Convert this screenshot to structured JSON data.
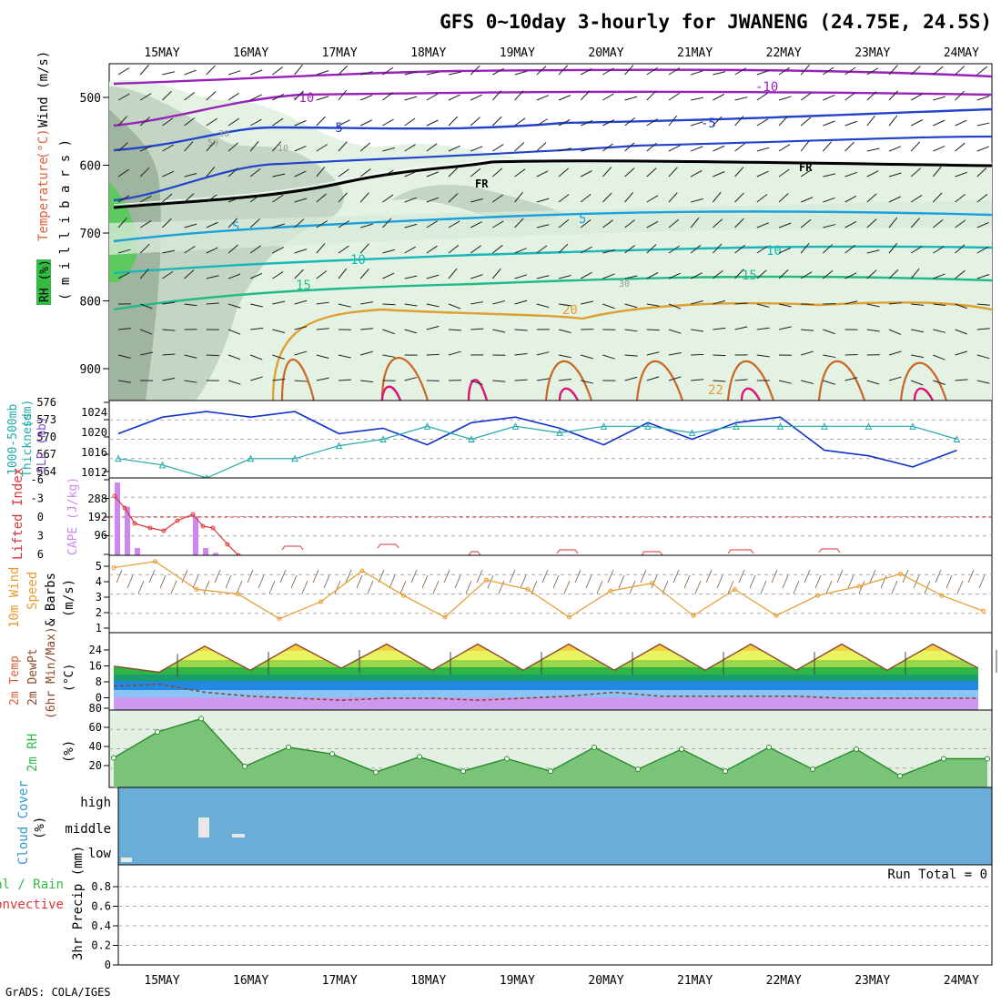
{
  "title": "GFS 0~10day 3-hourly for JWANENG (24.75E, 24.5S)",
  "footer": "GrADS: COLA/IGES",
  "dates": [
    "15MAY",
    "16MAY",
    "17MAY",
    "18MAY",
    "19MAY",
    "20MAY",
    "21MAY",
    "22MAY",
    "23MAY",
    "24MAY"
  ],
  "colors": {
    "temp_label": "#e0603a",
    "wind_label": "#000000",
    "rh_green": "#33bb44",
    "slp_blue": "#1133cc",
    "thickness_cyan": "#22aaaa",
    "lifted_red": "#dd3333",
    "cape_purple": "#cc88ee",
    "wind_orange": "#e89a30",
    "cloud_blue": "#6aaed8",
    "precip_green": "#33bb44",
    "precip_red": "#dd3333"
  },
  "panels": {
    "profile": {
      "ylabel_parts": [
        "Temperature",
        " (°C)",
        "Wind (m/s)"
      ],
      "ylabel_unit": "( m i l l i b a r s )",
      "rh_tag": "RH (%)",
      "pressure_ticks": [
        "500",
        "600",
        "700",
        "800",
        "900"
      ],
      "labels": {
        "m10a": "-10",
        "m10b": "-10",
        "m5a": "-5",
        "m5b": "-5",
        "fr1": "FR",
        "fr2": "FR",
        "p5": "5",
        "p5b": "5",
        "p10a": "10",
        "p10b": "10",
        "p15a": "15",
        "p15b": "15",
        "p20": "20",
        "p22": "22",
        "rh30a": "30",
        "rh30b": "30",
        "rh10": "10",
        "rh50": "50"
      }
    },
    "slp": {
      "ylabel1": "Thickness",
      "ylabel1b": "1000-500mb",
      "ylabel1c": "(dm)",
      "ylabel2": "SLP (mb)",
      "left_ticks": [
        "576",
        "573",
        "570",
        "567",
        "564"
      ],
      "right_ticks": [
        "1024",
        "1020",
        "1016",
        "1012"
      ]
    },
    "cape": {
      "ylabel1": "Lifted Index",
      "ylabel2": "CAPE (J/kg)",
      "left_ticks": [
        "-6",
        "-3",
        "0",
        "3",
        "6"
      ],
      "right_ticks": [
        "288",
        "192",
        "96"
      ]
    },
    "wind10": {
      "ylabel1": "10m Wind",
      "ylabel2": "Speed",
      "ylabel3": "& Barbs",
      "ylabel4": "(m/s)",
      "ticks": [
        "5",
        "4",
        "3",
        "2",
        "1"
      ]
    },
    "temp2m": {
      "ylabel1": "2m Temp",
      "ylabel2": "2m DewPt",
      "ylabel3": "(6hr Min/Max)",
      "ylabel4": "(°C)",
      "ticks": [
        "24",
        "16",
        "8",
        "0"
      ]
    },
    "rh2m": {
      "ylabel1": "2m RH",
      "ylabel2": "(%)",
      "ticks": [
        "80",
        "60",
        "40",
        "20"
      ]
    },
    "cloud": {
      "ylabel1": "Cloud Cover",
      "ylabel2": "(%)",
      "rows": [
        "high",
        "middle",
        "low"
      ]
    },
    "precip": {
      "ylabel1": "Total / Rain",
      "ylabel2": "Convective",
      "ylabel3": "3hr Precip (mm)",
      "ticks": [
        "0.8",
        "0.6",
        "0.4",
        "0.2",
        "0"
      ],
      "run_total": "Run Total = 0"
    }
  },
  "chart_data": [
    {
      "type": "line",
      "title": "Thickness 1000-500mb (dm) / SLP (mb)",
      "x": [
        "15MAY 00",
        "15MAY 12",
        "16MAY 00",
        "16MAY 12",
        "17MAY 00",
        "17MAY 12",
        "18MAY 00",
        "18MAY 12",
        "19MAY 00",
        "19MAY 12",
        "20MAY 00",
        "20MAY 12",
        "21MAY 00",
        "21MAY 12",
        "22MAY 00",
        "22MAY 12",
        "23MAY 00",
        "23MAY 12",
        "24MAY 00",
        "24MAY 12"
      ],
      "series": [
        {
          "name": "SLP (mb)",
          "values": [
            1020,
            1023,
            1024,
            1023,
            1024,
            1020,
            1021,
            1018,
            1022,
            1023,
            1021,
            1018,
            1022,
            1019,
            1022,
            1023,
            1017,
            1016,
            1014,
            1017
          ]
        },
        {
          "name": "Thickness (dm)",
          "values": [
            567,
            566,
            564,
            567,
            567,
            569,
            570,
            572,
            570,
            572,
            571,
            572,
            572,
            571,
            572,
            572,
            572,
            572,
            572,
            570
          ]
        }
      ],
      "ylim_left": [
        564,
        576
      ],
      "ylim_right": [
        1012,
        1026
      ]
    },
    {
      "type": "bar",
      "title": "Lifted Index / CAPE (J/kg)",
      "categories": [
        "15MAY 00",
        "15MAY 03",
        "15MAY 06",
        "16MAY 09",
        "16MAY 12",
        "16MAY 15"
      ],
      "series": [
        {
          "name": "CAPE (J/kg)",
          "values": [
            300,
            200,
            30,
            160,
            30,
            10
          ]
        },
        {
          "name": "Lifted Index",
          "values": [
            -4,
            -1,
            1,
            1.5,
            1.5,
            0
          ]
        }
      ]
    },
    {
      "type": "line",
      "title": "10m Wind Speed (m/s)",
      "x": [
        "15MAY 00",
        "15MAY 06",
        "15MAY 12",
        "16MAY 00",
        "16MAY 06",
        "16MAY 12",
        "17MAY 00",
        "17MAY 12",
        "18MAY 00",
        "18MAY 12",
        "19MAY 00",
        "19MAY 12",
        "20MAY 00",
        "20MAY 12",
        "21MAY 00",
        "21MAY 12",
        "22MAY 00",
        "22MAY 12",
        "23MAY 00",
        "23MAY 12",
        "24MAY 00",
        "24MAY 06"
      ],
      "values": [
        4.8,
        5.2,
        3.4,
        3.1,
        1.5,
        2.6,
        4.6,
        3.0,
        1.6,
        4.0,
        3.4,
        1.6,
        3.3,
        3.8,
        1.7,
        3.4,
        1.7,
        3.0,
        3.6,
        4.4,
        3.0,
        2.0
      ],
      "ylim": [
        1,
        5.5
      ]
    },
    {
      "type": "area",
      "title": "2m Temp / 2m DewPt (°C)",
      "x": [
        "15MAY 00",
        "15MAY 12",
        "16MAY 00",
        "16MAY 12",
        "17MAY 00",
        "17MAY 12",
        "18MAY 00",
        "18MAY 12",
        "19MAY 00",
        "19MAY 12",
        "20MAY 00",
        "20MAY 12",
        "21MAY 00",
        "21MAY 12",
        "22MAY 00",
        "22MAY 12",
        "23MAY 00",
        "23MAY 12",
        "24MAY 00",
        "24MAY 06"
      ],
      "series": [
        {
          "name": "2m Temp",
          "values": [
            16,
            13,
            26,
            14,
            27,
            15,
            27,
            14,
            27,
            14,
            27,
            14,
            27,
            14,
            27,
            14,
            27,
            14,
            27,
            15
          ]
        },
        {
          "name": "2m DewPt",
          "values": [
            6,
            7,
            3,
            1,
            0,
            -1,
            0,
            0,
            -1,
            0,
            1,
            3,
            1,
            1,
            1,
            1,
            0,
            0,
            0,
            0
          ]
        }
      ],
      "ylim": [
        -4,
        30
      ]
    },
    {
      "type": "area",
      "title": "2m RH (%)",
      "x": [
        "15MAY 00",
        "15MAY 06",
        "15MAY 12",
        "16MAY 00",
        "16MAY 12",
        "17MAY 00",
        "17MAY 12",
        "18MAY 00",
        "18MAY 12",
        "19MAY 00",
        "19MAY 12",
        "20MAY 00",
        "20MAY 12",
        "21MAY 00",
        "21MAY 12",
        "22MAY 00",
        "22MAY 12",
        "23MAY 00",
        "23MAY 12",
        "24MAY 00",
        "24MAY 06"
      ],
      "values": [
        31,
        58,
        72,
        22,
        42,
        35,
        16,
        32,
        17,
        30,
        17,
        42,
        19,
        40,
        17,
        42,
        19,
        40,
        12,
        30,
        30
      ],
      "ylim": [
        0,
        85
      ]
    },
    {
      "type": "bar",
      "title": "3hr Precip (mm)",
      "categories": [],
      "values": [],
      "ylim": [
        0,
        1.0
      ]
    }
  ]
}
